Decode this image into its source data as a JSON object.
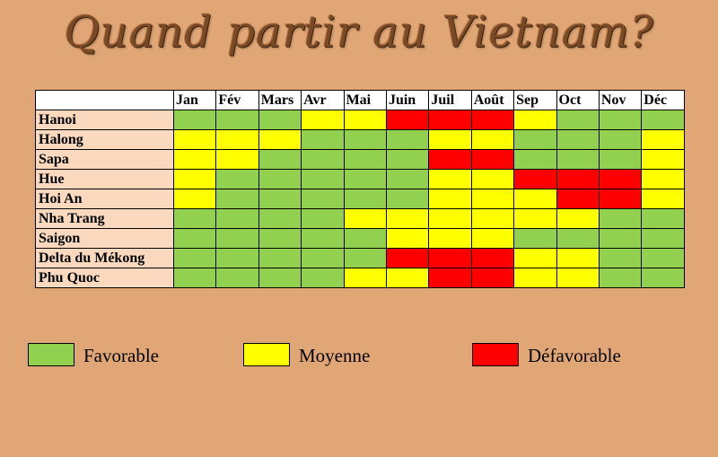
{
  "title": "Quand partir au Vietnam?",
  "colors": {
    "background": "#E0A675",
    "title": "#7A4A26",
    "city_cell": "#FAD9BE",
    "favorable": "#92D050",
    "moyenne": "#FFFF00",
    "defavorable": "#FF0000"
  },
  "chart_data": {
    "type": "heatmap",
    "title": "Quand partir au Vietnam?",
    "months": [
      "Jan",
      "Fév",
      "Mars",
      "Avr",
      "Mai",
      "Juin",
      "Juil",
      "Août",
      "Sep",
      "Oct",
      "Nov",
      "Déc"
    ],
    "categories_key": {
      "F": "Favorable",
      "M": "Moyenne",
      "D": "Défavorable"
    },
    "rows": [
      {
        "city": "Hanoi",
        "values": [
          "F",
          "F",
          "F",
          "M",
          "M",
          "D",
          "D",
          "D",
          "M",
          "F",
          "F",
          "F"
        ]
      },
      {
        "city": "Halong",
        "values": [
          "M",
          "M",
          "M",
          "F",
          "F",
          "F",
          "M",
          "M",
          "F",
          "F",
          "F",
          "M"
        ]
      },
      {
        "city": "Sapa",
        "values": [
          "M",
          "M",
          "F",
          "F",
          "F",
          "F",
          "D",
          "D",
          "F",
          "F",
          "F",
          "M"
        ]
      },
      {
        "city": "Hue",
        "values": [
          "M",
          "F",
          "F",
          "F",
          "F",
          "F",
          "M",
          "M",
          "D",
          "D",
          "D",
          "M"
        ]
      },
      {
        "city": "Hoi An",
        "values": [
          "M",
          "F",
          "F",
          "F",
          "F",
          "F",
          "M",
          "M",
          "M",
          "D",
          "D",
          "M"
        ]
      },
      {
        "city": "Nha Trang",
        "values": [
          "F",
          "F",
          "F",
          "F",
          "M",
          "M",
          "M",
          "M",
          "M",
          "M",
          "F",
          "F"
        ]
      },
      {
        "city": "Saigon",
        "values": [
          "F",
          "F",
          "F",
          "F",
          "F",
          "M",
          "M",
          "M",
          "F",
          "F",
          "F",
          "F"
        ]
      },
      {
        "city": "Delta du Mékong",
        "values": [
          "F",
          "F",
          "F",
          "F",
          "F",
          "D",
          "D",
          "D",
          "M",
          "M",
          "F",
          "F"
        ]
      },
      {
        "city": "Phu Quoc",
        "values": [
          "F",
          "F",
          "F",
          "F",
          "M",
          "M",
          "D",
          "D",
          "M",
          "M",
          "F",
          "F"
        ]
      }
    ],
    "legend": [
      {
        "key": "F",
        "label": "Favorable"
      },
      {
        "key": "M",
        "label": "Moyenne"
      },
      {
        "key": "D",
        "label": "Défavorable"
      }
    ]
  }
}
